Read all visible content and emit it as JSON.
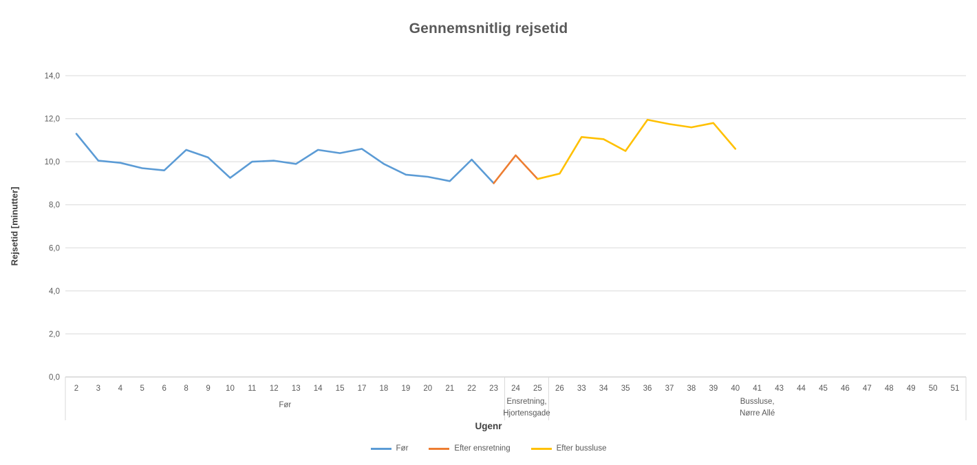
{
  "chart_data": {
    "type": "line",
    "title": "Gennemsnitlig rejsetid",
    "xlabel": "Ugenr",
    "ylabel": "Rejsetid [minutter]",
    "ylim": [
      0,
      14
    ],
    "grid": true,
    "legend_position": "bottom",
    "y_ticks": [
      {
        "value": 0,
        "label": "0,0"
      },
      {
        "value": 2,
        "label": "2,0"
      },
      {
        "value": 4,
        "label": "4,0"
      },
      {
        "value": 6,
        "label": "6,0"
      },
      {
        "value": 8,
        "label": "8,0"
      },
      {
        "value": 10,
        "label": "10,0"
      },
      {
        "value": 12,
        "label": "12,0"
      },
      {
        "value": 14,
        "label": "14,0"
      }
    ],
    "categories": [
      "2",
      "3",
      "4",
      "5",
      "6",
      "8",
      "9",
      "10",
      "11",
      "12",
      "13",
      "14",
      "15",
      "17",
      "18",
      "19",
      "20",
      "21",
      "22",
      "23",
      "24",
      "25",
      "26",
      "33",
      "34",
      "35",
      "36",
      "37",
      "38",
      "39",
      "40",
      "41",
      "43",
      "44",
      "45",
      "46",
      "47",
      "48",
      "49",
      "50",
      "51"
    ],
    "category_groups": [
      {
        "label_lines": [
          "Før"
        ],
        "span": 20
      },
      {
        "label_lines": [
          "Ensretning,",
          "Hjortensgade"
        ],
        "span": 2
      },
      {
        "label_lines": [
          "Bussluse,",
          "Nørre Allé"
        ],
        "span": 19
      }
    ],
    "series": [
      {
        "name": "Før",
        "color": "#5B9BD5",
        "points": [
          {
            "week": "2",
            "value": 11.3
          },
          {
            "week": "3",
            "value": 10.05
          },
          {
            "week": "4",
            "value": 9.95
          },
          {
            "week": "5",
            "value": 9.7
          },
          {
            "week": "6",
            "value": 9.6
          },
          {
            "week": "8",
            "value": 10.55
          },
          {
            "week": "9",
            "value": 10.2
          },
          {
            "week": "10",
            "value": 9.25
          },
          {
            "week": "11",
            "value": 10.0
          },
          {
            "week": "12",
            "value": 10.05
          },
          {
            "week": "13",
            "value": 9.9
          },
          {
            "week": "14",
            "value": 10.55
          },
          {
            "week": "15",
            "value": 10.4
          },
          {
            "week": "17",
            "value": 10.6
          },
          {
            "week": "18",
            "value": 9.9
          },
          {
            "week": "19",
            "value": 9.4
          },
          {
            "week": "20",
            "value": 9.3
          },
          {
            "week": "21",
            "value": 9.1
          },
          {
            "week": "22",
            "value": 10.1
          },
          {
            "week": "23",
            "value": 9.0
          }
        ]
      },
      {
        "name": "Efter ensretning",
        "color": "#ED7D31",
        "points": [
          {
            "week": "23",
            "value": 9.0
          },
          {
            "week": "24",
            "value": 10.3
          },
          {
            "week": "25",
            "value": 9.2
          }
        ]
      },
      {
        "name": "Efter bussluse",
        "color": "#FFC000",
        "points": [
          {
            "week": "25",
            "value": 9.2
          },
          {
            "week": "26",
            "value": 9.45
          },
          {
            "week": "33",
            "value": 11.15
          },
          {
            "week": "34",
            "value": 11.05
          },
          {
            "week": "35",
            "value": 10.5
          },
          {
            "week": "36",
            "value": 11.95
          },
          {
            "week": "37",
            "value": 11.75
          },
          {
            "week": "38",
            "value": 11.6
          },
          {
            "week": "39",
            "value": 11.8
          },
          {
            "week": "40",
            "value": 10.6
          }
        ]
      }
    ]
  },
  "colors": {
    "grid": "#D9D9D9",
    "axis_line": "#BFBFBF",
    "group_divider": "#D9D9D9",
    "tick_text": "#595959",
    "title_text": "#595959",
    "axis_title_text": "#404040"
  }
}
